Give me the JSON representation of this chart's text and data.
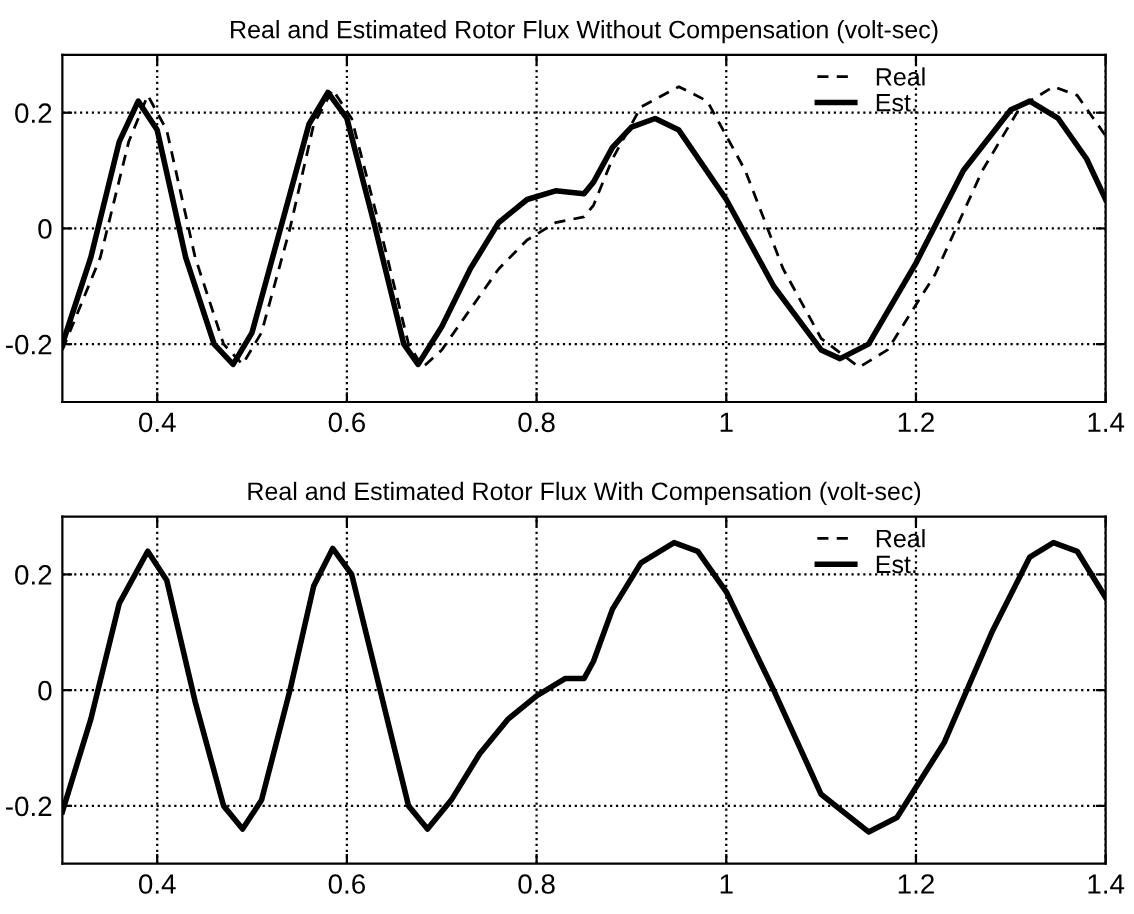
{
  "chart_data": [
    {
      "type": "line",
      "title": "Real and Estimated Rotor Flux Without Compensation (volt-sec)",
      "xlim": [
        0.3,
        1.4
      ],
      "xticks": [
        0.4,
        0.6,
        0.8,
        1,
        1.2,
        1.4
      ],
      "ylim": [
        -0.3,
        0.3
      ],
      "yticks": [
        -0.2,
        0,
        0.2
      ],
      "grid": true,
      "legend": "top right",
      "series": [
        {
          "name": "Real",
          "color": "#000000",
          "line_style": "dashed",
          "x": [
            0.3,
            0.34,
            0.37,
            0.39,
            0.41,
            0.44,
            0.47,
            0.49,
            0.51,
            0.54,
            0.565,
            0.585,
            0.605,
            0.635,
            0.665,
            0.68,
            0.7,
            0.73,
            0.76,
            0.79,
            0.82,
            0.85,
            0.86,
            0.88,
            0.91,
            0.95,
            0.98,
            1.02,
            1.06,
            1.1,
            1.14,
            1.17,
            1.22,
            1.27,
            1.31,
            1.345,
            1.37,
            1.4
          ],
          "values": [
            -0.21,
            -0.05,
            0.15,
            0.23,
            0.17,
            -0.05,
            -0.2,
            -0.235,
            -0.18,
            0.0,
            0.18,
            0.24,
            0.19,
            0.0,
            -0.2,
            -0.24,
            -0.21,
            -0.14,
            -0.07,
            -0.02,
            0.01,
            0.02,
            0.04,
            0.12,
            0.21,
            0.245,
            0.22,
            0.1,
            -0.07,
            -0.19,
            -0.24,
            -0.21,
            -0.08,
            0.1,
            0.21,
            0.245,
            0.23,
            0.16
          ]
        },
        {
          "name": "Est.",
          "color": "#000000",
          "line_style": "solid",
          "x": [
            0.3,
            0.33,
            0.36,
            0.38,
            0.4,
            0.43,
            0.46,
            0.48,
            0.5,
            0.53,
            0.56,
            0.58,
            0.6,
            0.63,
            0.66,
            0.675,
            0.7,
            0.73,
            0.76,
            0.79,
            0.82,
            0.85,
            0.86,
            0.88,
            0.9,
            0.925,
            0.95,
            1.0,
            1.05,
            1.1,
            1.12,
            1.15,
            1.2,
            1.25,
            1.3,
            1.32,
            1.35,
            1.38,
            1.4
          ],
          "values": [
            -0.2,
            -0.05,
            0.15,
            0.22,
            0.17,
            -0.05,
            -0.2,
            -0.235,
            -0.18,
            0.0,
            0.18,
            0.235,
            0.19,
            0.0,
            -0.2,
            -0.235,
            -0.17,
            -0.07,
            0.01,
            0.05,
            0.065,
            0.06,
            0.08,
            0.14,
            0.175,
            0.19,
            0.17,
            0.05,
            -0.1,
            -0.21,
            -0.225,
            -0.2,
            -0.06,
            0.1,
            0.205,
            0.22,
            0.19,
            0.12,
            0.05
          ]
        }
      ]
    },
    {
      "type": "line",
      "title": "Real and Estimated Rotor Flux With Compensation (volt-sec)",
      "xlim": [
        0.3,
        1.4
      ],
      "xticks": [
        0.4,
        0.6,
        0.8,
        1,
        1.2,
        1.4
      ],
      "ylim": [
        -0.3,
        0.3
      ],
      "yticks": [
        -0.2,
        0,
        0.2
      ],
      "grid": true,
      "legend": "top right",
      "series": [
        {
          "name": "Real",
          "color": "#000000",
          "line_style": "dashed"
        },
        {
          "name": "Est.",
          "color": "#000000",
          "line_style": "solid",
          "x": [
            0.3,
            0.33,
            0.36,
            0.39,
            0.41,
            0.44,
            0.47,
            0.49,
            0.51,
            0.54,
            0.565,
            0.585,
            0.605,
            0.635,
            0.665,
            0.685,
            0.71,
            0.74,
            0.77,
            0.8,
            0.83,
            0.85,
            0.86,
            0.88,
            0.91,
            0.945,
            0.97,
            1.0,
            1.05,
            1.1,
            1.15,
            1.18,
            1.23,
            1.28,
            1.32,
            1.345,
            1.37,
            1.4
          ],
          "values": [
            -0.21,
            -0.05,
            0.15,
            0.24,
            0.19,
            -0.02,
            -0.2,
            -0.24,
            -0.19,
            0.0,
            0.18,
            0.245,
            0.2,
            0.0,
            -0.2,
            -0.24,
            -0.19,
            -0.11,
            -0.05,
            -0.01,
            0.02,
            0.02,
            0.05,
            0.14,
            0.22,
            0.255,
            0.24,
            0.17,
            0.0,
            -0.18,
            -0.245,
            -0.22,
            -0.09,
            0.1,
            0.23,
            0.255,
            0.24,
            0.16
          ]
        }
      ]
    }
  ]
}
